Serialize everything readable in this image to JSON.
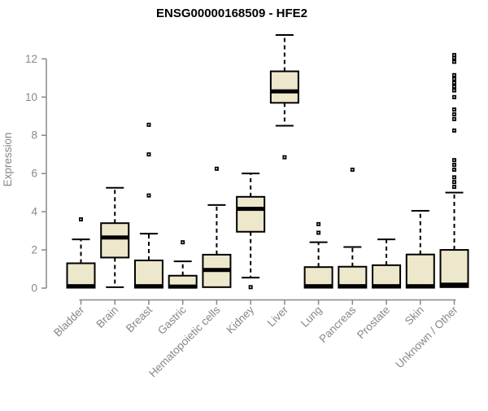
{
  "chart_data": {
    "type": "boxplot",
    "title": "ENSG00000168509 - HFE2",
    "xlabel": "",
    "ylabel": "Expression",
    "ylim": [
      0,
      12
    ],
    "yticks": [
      0,
      2,
      4,
      6,
      8,
      10,
      12
    ],
    "grid": false,
    "legend": "none",
    "categories": [
      "Bladder",
      "Brain",
      "Breast",
      "Gastric",
      "Hematopoietic cells",
      "Kidney",
      "Liver",
      "Lung",
      "Pancreas",
      "Prostate",
      "Skin",
      "Unknown / Other"
    ],
    "series": [
      {
        "category": "Bladder",
        "whisker_low": 0,
        "q1": 0.02,
        "median": 0.1,
        "q3": 1.3,
        "whisker_high": 2.55,
        "outliers": [
          3.6
        ]
      },
      {
        "category": "Brain",
        "whisker_low": 0.05,
        "q1": 1.6,
        "median": 2.65,
        "q3": 3.4,
        "whisker_high": 5.25,
        "outliers": []
      },
      {
        "category": "Breast",
        "whisker_low": 0,
        "q1": 0.02,
        "median": 0.1,
        "q3": 1.45,
        "whisker_high": 2.85,
        "outliers": [
          8.55,
          7.0,
          4.85
        ]
      },
      {
        "category": "Gastric",
        "whisker_low": 0,
        "q1": 0.02,
        "median": 0.08,
        "q3": 0.65,
        "whisker_high": 1.4,
        "outliers": [
          2.4
        ]
      },
      {
        "category": "Hematopoietic cells",
        "whisker_low": 0,
        "q1": 0.05,
        "median": 0.95,
        "q3": 1.75,
        "whisker_high": 4.35,
        "outliers": [
          6.25
        ]
      },
      {
        "category": "Kidney",
        "whisker_low": 0.55,
        "q1": 2.95,
        "median": 4.15,
        "q3": 4.78,
        "whisker_high": 6.0,
        "outliers": [
          0.05
        ]
      },
      {
        "category": "Liver",
        "whisker_low": 8.5,
        "q1": 9.7,
        "median": 10.3,
        "q3": 11.35,
        "whisker_high": 13.25,
        "outliers": [
          6.85
        ]
      },
      {
        "category": "Lung",
        "whisker_low": 0,
        "q1": 0.02,
        "median": 0.1,
        "q3": 1.1,
        "whisker_high": 2.4,
        "outliers": [
          3.35,
          2.9
        ]
      },
      {
        "category": "Pancreas",
        "whisker_low": 0,
        "q1": 0.02,
        "median": 0.1,
        "q3": 1.12,
        "whisker_high": 2.15,
        "outliers": [
          6.2
        ]
      },
      {
        "category": "Prostate",
        "whisker_low": 0,
        "q1": 0.02,
        "median": 0.1,
        "q3": 1.2,
        "whisker_high": 2.55,
        "outliers": []
      },
      {
        "category": "Skin",
        "whisker_low": 0,
        "q1": 0.02,
        "median": 0.1,
        "q3": 1.76,
        "whisker_high": 4.05,
        "outliers": []
      },
      {
        "category": "Unknown / Other",
        "whisker_low": 0,
        "q1": 0.05,
        "median": 0.18,
        "q3": 2.0,
        "whisker_high": 5.0,
        "outliers": [
          12.2,
          12.05,
          11.85,
          11.15,
          10.95,
          10.75,
          10.55,
          10.35,
          10.0,
          9.35,
          9.1,
          8.85,
          8.25,
          6.7,
          6.45,
          6.2,
          5.8,
          5.55,
          5.3
        ]
      }
    ],
    "colors": {
      "box_fill": "#EDE7CB",
      "box_border": "#000000",
      "median": "#000000",
      "outlier": "#000000",
      "axis": "#888888",
      "tick_label": "#878787",
      "title": "#000000",
      "background": "#ffffff"
    }
  }
}
